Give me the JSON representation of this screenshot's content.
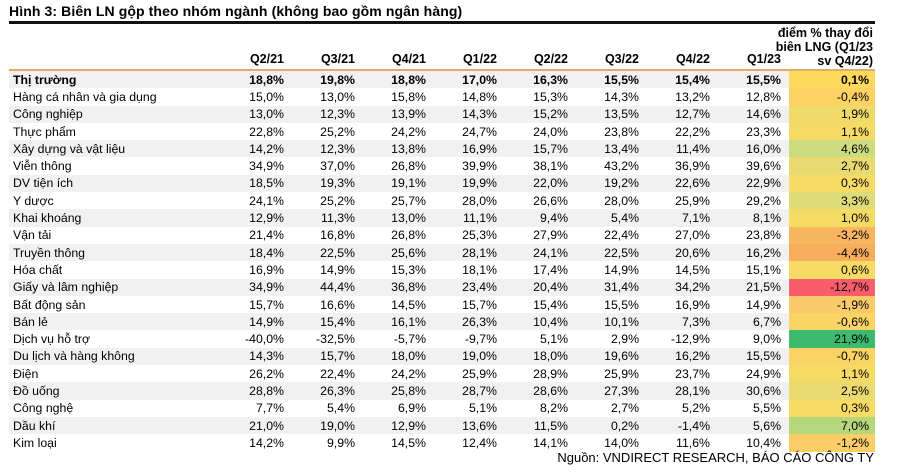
{
  "title": "Hình 3: Biên LN gộp theo nhóm ngành (không bao gồm ngân hàng)",
  "source": "Nguồn: VNDIRECT RESEARCH, BÁO CÁO CÔNG TY",
  "colors": {
    "title_rule": "#111111",
    "header_rule": "#E4AC63",
    "row_stripe": "#F1F1F1",
    "heat_red": "#F95D6C",
    "heat_yellow": "#F7DB64",
    "heat_green": "#3DBA6F"
  },
  "chart_data": {
    "type": "table",
    "title": "Hình 3: Biên LN gộp theo nhóm ngành (không bao gồm ngân hàng)",
    "columns": [
      "Q2/21",
      "Q3/21",
      "Q4/21",
      "Q1/22",
      "Q2/22",
      "Q3/22",
      "Q4/22",
      "Q1/23"
    ],
    "change_column": {
      "label": "điểm % thay đổi biên LNG (Q1/23 sv Q4/22)",
      "header_lines": [
        "điểm % thay đổi",
        "biên LNG (Q1/23",
        "sv Q4/22)"
      ]
    },
    "rows": [
      {
        "label": "Thị trường",
        "bold": true,
        "values": [
          "18,8%",
          "19,8%",
          "18,8%",
          "17,0%",
          "16,3%",
          "15,5%",
          "15,4%",
          "15,5%"
        ],
        "change": "0,1%",
        "change_color": "#FFD95C"
      },
      {
        "label": "Hàng cá nhân và gia dụng",
        "bold": false,
        "values": [
          "15,0%",
          "13,0%",
          "15,8%",
          "14,8%",
          "15,3%",
          "14,3%",
          "13,2%",
          "12,8%"
        ],
        "change": "-0,4%",
        "change_color": "#FBD263"
      },
      {
        "label": "Công nghiệp",
        "bold": false,
        "values": [
          "13,0%",
          "12,3%",
          "13,9%",
          "14,3%",
          "15,2%",
          "13,5%",
          "12,7%",
          "14,6%"
        ],
        "change": "1,9%",
        "change_color": "#F0DA69"
      },
      {
        "label": "Thực phẩm",
        "bold": false,
        "values": [
          "22,8%",
          "25,2%",
          "24,2%",
          "24,7%",
          "24,0%",
          "23,8%",
          "22,2%",
          "23,3%"
        ],
        "change": "1,1%",
        "change_color": "#F5DB66"
      },
      {
        "label": "Xây dựng và vật liệu",
        "bold": false,
        "values": [
          "14,2%",
          "12,3%",
          "13,8%",
          "16,9%",
          "15,7%",
          "13,4%",
          "11,4%",
          "16,0%"
        ],
        "change": "4,6%",
        "change_color": "#CEDC81"
      },
      {
        "label": "Viễn thông",
        "bold": false,
        "values": [
          "34,9%",
          "37,0%",
          "26,8%",
          "39,9%",
          "38,1%",
          "43,2%",
          "36,9%",
          "39,6%"
        ],
        "change": "2,7%",
        "change_color": "#E8DA70"
      },
      {
        "label": "DV tiện ích",
        "bold": false,
        "values": [
          "18,5%",
          "19,3%",
          "19,1%",
          "19,9%",
          "22,0%",
          "19,2%",
          "22,6%",
          "22,9%"
        ],
        "change": "0,3%",
        "change_color": "#F8DB64"
      },
      {
        "label": "Y dược",
        "bold": false,
        "values": [
          "24,1%",
          "25,2%",
          "25,7%",
          "28,0%",
          "26,6%",
          "28,0%",
          "25,9%",
          "29,2%"
        ],
        "change": "3,3%",
        "change_color": "#DDDC79"
      },
      {
        "label": "Khai khoáng",
        "bold": false,
        "values": [
          "12,9%",
          "11,3%",
          "13,0%",
          "11,1%",
          "9,4%",
          "5,4%",
          "7,1%",
          "8,1%"
        ],
        "change": "1,0%",
        "change_color": "#F5DB66"
      },
      {
        "label": "Vận tải",
        "bold": false,
        "values": [
          "21,4%",
          "16,8%",
          "26,8%",
          "25,3%",
          "27,9%",
          "22,4%",
          "27,0%",
          "23,8%"
        ],
        "change": "-3,2%",
        "change_color": "#F8B55F"
      },
      {
        "label": "Truyền thông",
        "bold": false,
        "values": [
          "18,4%",
          "22,5%",
          "25,6%",
          "28,1%",
          "24,1%",
          "22,5%",
          "20,6%",
          "16,2%"
        ],
        "change": "-4,4%",
        "change_color": "#F7AD5B"
      },
      {
        "label": "Hóa chất",
        "bold": false,
        "values": [
          "16,9%",
          "14,9%",
          "15,3%",
          "18,1%",
          "17,4%",
          "14,9%",
          "14,5%",
          "15,1%"
        ],
        "change": "0,6%",
        "change_color": "#F7DB64"
      },
      {
        "label": "Giấy và lâm nghiệp",
        "bold": false,
        "values": [
          "34,9%",
          "44,4%",
          "36,8%",
          "23,4%",
          "20,4%",
          "31,4%",
          "34,2%",
          "21,5%"
        ],
        "change": "-12,7%",
        "change_color": "#F95D6C"
      },
      {
        "label": "Bất động sản",
        "bold": false,
        "values": [
          "15,7%",
          "16,6%",
          "14,5%",
          "15,7%",
          "15,4%",
          "15,5%",
          "16,9%",
          "14,9%"
        ],
        "change": "-1,9%",
        "change_color": "#FACA69"
      },
      {
        "label": "Bán lẻ",
        "bold": false,
        "values": [
          "14,9%",
          "15,4%",
          "16,1%",
          "26,3%",
          "10,4%",
          "10,1%",
          "7,3%",
          "6,7%"
        ],
        "change": "-0,6%",
        "change_color": "#FAD465"
      },
      {
        "label": "Dịch vụ hỗ trợ",
        "bold": false,
        "values": [
          "-40,0%",
          "-32,5%",
          "-5,7%",
          "-9,7%",
          "5,1%",
          "2,9%",
          "-12,9%",
          "9,0%"
        ],
        "change": "21,9%",
        "change_color": "#3DBA6F"
      },
      {
        "label": "Du lịch và hàng không",
        "bold": false,
        "values": [
          "14,3%",
          "15,7%",
          "18,0%",
          "19,0%",
          "18,0%",
          "19,6%",
          "16,2%",
          "15,5%"
        ],
        "change": "-0,7%",
        "change_color": "#FAD365"
      },
      {
        "label": "Điện",
        "bold": false,
        "values": [
          "26,2%",
          "22,4%",
          "24,2%",
          "25,9%",
          "28,9%",
          "25,9%",
          "23,7%",
          "24,9%"
        ],
        "change": "1,1%",
        "change_color": "#F5DB66"
      },
      {
        "label": "Đồ uống",
        "bold": false,
        "values": [
          "28,8%",
          "26,3%",
          "25,8%",
          "28,7%",
          "28,6%",
          "27,3%",
          "28,1%",
          "30,6%"
        ],
        "change": "2,5%",
        "change_color": "#EADA6F"
      },
      {
        "label": "Công nghệ",
        "bold": false,
        "values": [
          "7,7%",
          "5,4%",
          "6,9%",
          "5,1%",
          "8,2%",
          "2,7%",
          "5,2%",
          "5,5%"
        ],
        "change": "0,3%",
        "change_color": "#F8DB64"
      },
      {
        "label": "Dầu khí",
        "bold": false,
        "values": [
          "21,0%",
          "19,0%",
          "12,9%",
          "13,6%",
          "11,5%",
          "0,2%",
          "-1,4%",
          "5,6%"
        ],
        "change": "7,0%",
        "change_color": "#B5D67B"
      },
      {
        "label": "Kim loại",
        "bold": false,
        "values": [
          "14,2%",
          "9,9%",
          "14,5%",
          "12,4%",
          "14,1%",
          "14,0%",
          "11,6%",
          "10,4%"
        ],
        "change": "-1,2%",
        "change_color": "#FACD67"
      }
    ]
  }
}
